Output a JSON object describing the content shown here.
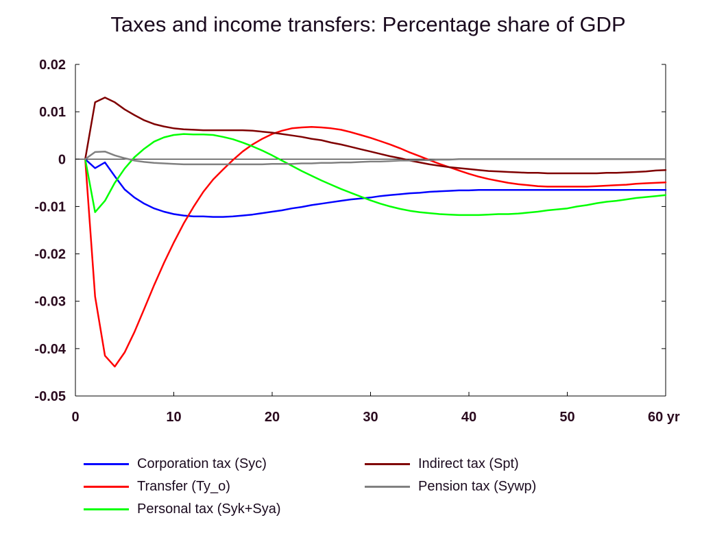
{
  "chart_data": {
    "type": "line",
    "title": "Taxes and income transfers: Percentage share of GDP",
    "xlabel": "",
    "ylabel": "",
    "x_unit_label": "yr",
    "xlim": [
      0,
      60
    ],
    "ylim": [
      -0.05,
      0.02
    ],
    "x_ticks": [
      0,
      10,
      20,
      30,
      40,
      50,
      60
    ],
    "x_tick_labels": [
      "0",
      "10",
      "20",
      "30",
      "40",
      "50",
      "60 yr"
    ],
    "y_ticks": [
      0.02,
      0.01,
      0,
      -0.01,
      -0.02,
      -0.03,
      -0.04,
      -0.05
    ],
    "y_tick_labels": [
      "0.02",
      "0.01",
      "0",
      "-0.01",
      "-0.02",
      "-0.03",
      "-0.04",
      "-0.05"
    ],
    "grid": false,
    "zero_line": true,
    "legend_position": "bottom",
    "x": [
      1,
      2,
      3,
      4,
      5,
      6,
      7,
      8,
      9,
      10,
      11,
      12,
      13,
      14,
      15,
      16,
      17,
      18,
      19,
      20,
      21,
      22,
      23,
      24,
      25,
      26,
      27,
      28,
      29,
      30,
      31,
      32,
      33,
      34,
      35,
      36,
      37,
      38,
      39,
      40,
      41,
      42,
      43,
      44,
      45,
      46,
      47,
      48,
      49,
      50,
      51,
      52,
      53,
      54,
      55,
      56,
      57,
      58,
      59,
      60
    ],
    "series": [
      {
        "name": "Corporation tax (Syc)",
        "color": "#0000ff",
        "values": [
          0,
          -0.0019,
          -0.0007,
          -0.0036,
          -0.0064,
          -0.0081,
          -0.0094,
          -0.0104,
          -0.0111,
          -0.0116,
          -0.0119,
          -0.0121,
          -0.0121,
          -0.0122,
          -0.0122,
          -0.0121,
          -0.0119,
          -0.0117,
          -0.0114,
          -0.0111,
          -0.0108,
          -0.0104,
          -0.0101,
          -0.0097,
          -0.0094,
          -0.0091,
          -0.0088,
          -0.0085,
          -0.0083,
          -0.0081,
          -0.0078,
          -0.0076,
          -0.0074,
          -0.0072,
          -0.0071,
          -0.0069,
          -0.0068,
          -0.0067,
          -0.0066,
          -0.0066,
          -0.0065,
          -0.0065,
          -0.0065,
          -0.0065,
          -0.0065,
          -0.0065,
          -0.0065,
          -0.0065,
          -0.0065,
          -0.0065,
          -0.0065,
          -0.0065,
          -0.0065,
          -0.0065,
          -0.0065,
          -0.0065,
          -0.0065,
          -0.0065,
          -0.0065,
          -0.0065
        ]
      },
      {
        "name": "Transfer (Ty_o)",
        "color": "#ff0000",
        "values": [
          0,
          -0.029,
          -0.0415,
          -0.0438,
          -0.0408,
          -0.0365,
          -0.0316,
          -0.0266,
          -0.0219,
          -0.0176,
          -0.0136,
          -0.0101,
          -0.0069,
          -0.0043,
          -0.0022,
          -0.0002,
          0.0016,
          0.0031,
          0.0043,
          0.0053,
          0.006,
          0.0065,
          0.0067,
          0.0068,
          0.0067,
          0.0065,
          0.0062,
          0.0057,
          0.0051,
          0.0045,
          0.0038,
          0.0031,
          0.0023,
          0.0014,
          0.0006,
          -0.0002,
          -0.001,
          -0.0017,
          -0.0024,
          -0.0031,
          -0.0037,
          -0.0042,
          -0.0046,
          -0.005,
          -0.0053,
          -0.0055,
          -0.0057,
          -0.0058,
          -0.0058,
          -0.0058,
          -0.0058,
          -0.0058,
          -0.0057,
          -0.0056,
          -0.0055,
          -0.0054,
          -0.0052,
          -0.0051,
          -0.005,
          -0.0049
        ]
      },
      {
        "name": "Personal tax (Syk+Sya)",
        "color": "#00ff00",
        "values": [
          0,
          -0.0112,
          -0.0088,
          -0.005,
          -0.002,
          0.0004,
          0.0022,
          0.0037,
          0.0046,
          0.0051,
          0.0053,
          0.0052,
          0.0052,
          0.0051,
          0.0047,
          0.0042,
          0.0035,
          0.0027,
          0.0018,
          0.0008,
          -0.0003,
          -0.0014,
          -0.0025,
          -0.0035,
          -0.0045,
          -0.0054,
          -0.0063,
          -0.0071,
          -0.0079,
          -0.0087,
          -0.0094,
          -0.01,
          -0.0105,
          -0.0109,
          -0.0112,
          -0.0114,
          -0.0116,
          -0.0117,
          -0.0118,
          -0.0118,
          -0.0118,
          -0.0117,
          -0.0116,
          -0.0116,
          -0.0115,
          -0.0113,
          -0.0111,
          -0.0108,
          -0.0106,
          -0.0104,
          -0.01,
          -0.0097,
          -0.0093,
          -0.009,
          -0.0088,
          -0.0085,
          -0.0082,
          -0.008,
          -0.0078,
          -0.0076
        ]
      },
      {
        "name": "Indirect tax (Spt)",
        "color": "#7f0000",
        "values": [
          0,
          0.012,
          0.013,
          0.012,
          0.0105,
          0.0093,
          0.0082,
          0.0074,
          0.0069,
          0.0065,
          0.0063,
          0.0062,
          0.0061,
          0.0061,
          0.0061,
          0.0061,
          0.0061,
          0.006,
          0.0058,
          0.0056,
          0.0053,
          0.005,
          0.0047,
          0.0043,
          0.004,
          0.0035,
          0.0031,
          0.0026,
          0.0021,
          0.0016,
          0.0011,
          0.0006,
          0.0002,
          -0.0003,
          -0.0007,
          -0.0011,
          -0.0014,
          -0.0017,
          -0.0019,
          -0.0021,
          -0.0023,
          -0.0025,
          -0.0026,
          -0.0027,
          -0.0028,
          -0.0029,
          -0.0029,
          -0.003,
          -0.003,
          -0.003,
          -0.003,
          -0.003,
          -0.003,
          -0.0029,
          -0.0029,
          -0.0028,
          -0.0027,
          -0.0026,
          -0.0024,
          -0.0023
        ]
      },
      {
        "name": "Pension tax (Sywp)",
        "color": "#808080",
        "values": [
          0,
          0.0015,
          0.0016,
          0.0008,
          0.0002,
          -0.0003,
          -0.0006,
          -0.0008,
          -0.0009,
          -0.001,
          -0.0011,
          -0.0011,
          -0.0011,
          -0.0011,
          -0.0011,
          -0.0011,
          -0.0011,
          -0.0011,
          -0.0011,
          -0.001,
          -0.001,
          -0.001,
          -0.0009,
          -0.0009,
          -0.0008,
          -0.0008,
          -0.0007,
          -0.0007,
          -0.0006,
          -0.0005,
          -0.0005,
          -0.0004,
          -0.0003,
          -0.0003,
          -0.0002,
          -0.0002,
          -0.0001,
          -0.0001,
          0,
          0,
          0,
          0,
          0,
          0,
          0,
          0,
          0,
          0,
          0,
          0,
          0,
          0,
          0,
          0,
          0,
          0,
          0,
          0,
          0,
          0
        ]
      }
    ],
    "legend_order": [
      "Corporation tax (Syc)",
      "Indirect tax (Spt)",
      "Transfer (Ty_o)",
      "Pension tax (Sywp)",
      "Personal tax (Syk+Sya)"
    ]
  }
}
